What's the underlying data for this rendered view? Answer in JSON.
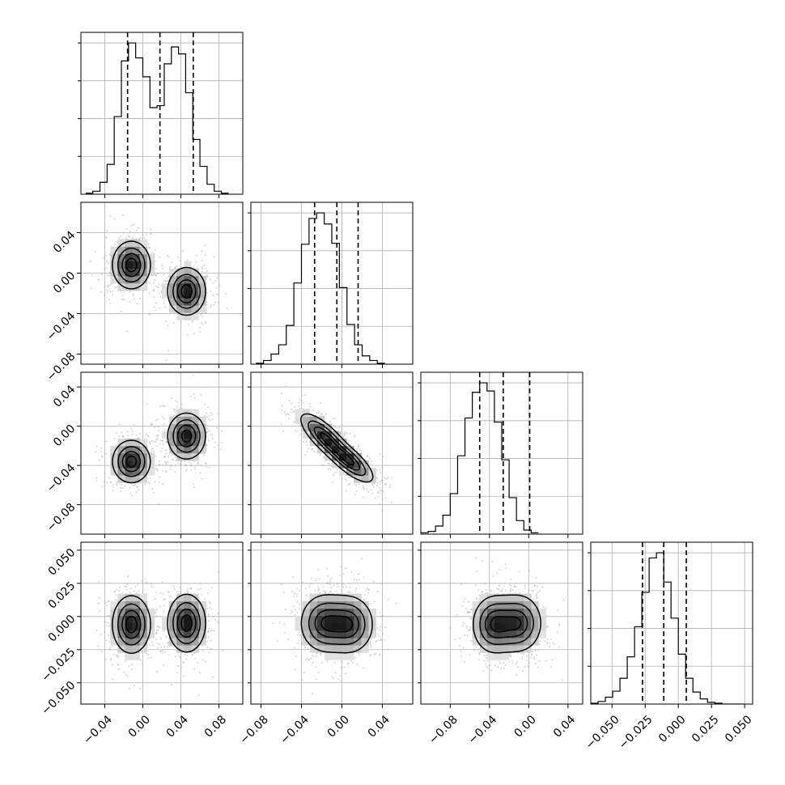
{
  "chart_data": {
    "type": "corner",
    "parameter_count": 4,
    "grid": true,
    "colors": {
      "ink": "#000000",
      "grid": "#b0b0b0",
      "scatter": "#9a9a9a"
    },
    "param_ranges": [
      [
        -0.065,
        0.105
      ],
      [
        -0.09,
        0.07
      ],
      [
        -0.11,
        0.055
      ],
      [
        -0.066,
        0.056
      ]
    ],
    "ticks": [
      [
        -0.04,
        0.0,
        0.04,
        0.08
      ],
      [
        -0.08,
        -0.04,
        0.0,
        0.04
      ],
      [
        -0.08,
        -0.04,
        0.0,
        0.04
      ],
      [
        -0.05,
        -0.025,
        0.0,
        0.025,
        0.05
      ]
    ],
    "tick_labels": [
      [
        "−0.04",
        "0.00",
        "0.04",
        "0.08"
      ],
      [
        "−0.08",
        "−0.04",
        "0.00",
        "0.04"
      ],
      [
        "−0.08",
        "−0.04",
        "0.00",
        "0.04"
      ],
      [
        "−0.050",
        "−0.025",
        "0.000",
        "0.025",
        "0.050"
      ]
    ],
    "quantiles": [
      [
        -0.016,
        0.018,
        0.053
      ],
      [
        -0.027,
        -0.005,
        0.016
      ],
      [
        -0.05,
        -0.026,
        0.001
      ],
      [
        -0.027,
        -0.011,
        0.006
      ]
    ],
    "histograms": [
      {
        "edges_start": -0.06,
        "bin_width": 0.0075,
        "counts": [
          1,
          3,
          12,
          30,
          78,
          134,
          152,
          137,
          118,
          87,
          89,
          131,
          148,
          141,
          102,
          55,
          28,
          10,
          3,
          1
        ]
      },
      {
        "edges_start": -0.085,
        "bin_width": 0.0075,
        "counts": [
          1,
          4,
          11,
          21,
          42,
          88,
          130,
          158,
          164,
          152,
          131,
          83,
          43,
          21,
          9,
          4,
          1
        ]
      },
      {
        "edges_start": -0.11,
        "bin_width": 0.0075,
        "counts": [
          1,
          2,
          6,
          14,
          30,
          58,
          86,
          105,
          112,
          106,
          83,
          55,
          27,
          10,
          3,
          1
        ]
      },
      {
        "edges_start": -0.066,
        "bin_width": 0.0055,
        "counts": [
          1,
          3,
          8,
          15,
          30,
          55,
          90,
          130,
          170,
          176,
          142,
          100,
          58,
          30,
          14,
          6,
          2,
          1,
          0,
          0,
          0
        ]
      }
    ],
    "components": [
      {
        "weight": 0.5,
        "mean": [
          -0.012,
          0.008,
          -0.036,
          -0.006
        ],
        "sd": [
          0.011,
          0.013,
          0.012,
          0.012
        ]
      },
      {
        "weight": 0.5,
        "mean": [
          0.046,
          -0.018,
          -0.01,
          -0.005
        ],
        "sd": [
          0.011,
          0.013,
          0.013,
          0.012
        ]
      }
    ],
    "pair_correlations": {
      "1-2": -0.75
    },
    "contour_levels": [
      0.2,
      0.45,
      0.7,
      0.9
    ]
  }
}
